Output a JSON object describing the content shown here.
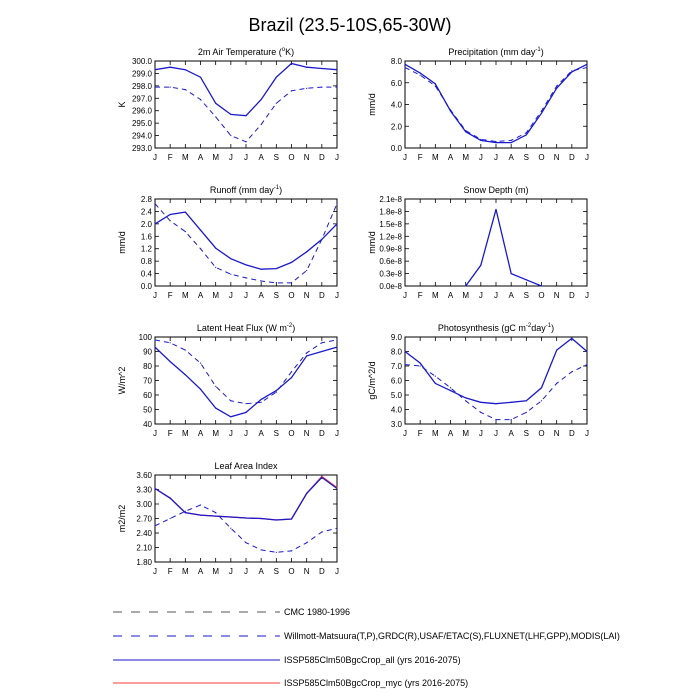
{
  "page_title": "Brazil (23.5-10S,65-30W)",
  "months": [
    "J",
    "F",
    "M",
    "A",
    "M",
    "J",
    "J",
    "A",
    "S",
    "O",
    "N",
    "D",
    "J"
  ],
  "colors": {
    "obs_cmc": "#555555",
    "obs_wm": "#1a1acc",
    "all": "#1a1acc",
    "myc": "#ff3b3b"
  },
  "legend": [
    {
      "label": "CMC 1980-1996",
      "style": "dashed",
      "color": "#555555"
    },
    {
      "label": "Willmott-Matsuura(T,P),GRDC(R),USAF/ETAC(S),FLUXNET(LHF,GPP),MODIS(LAI)",
      "style": "dashed",
      "color": "#1a1acc"
    },
    {
      "label": "ISSP585Clm50BgcCrop_all (yrs 2016-2075)",
      "style": "solid",
      "color": "#1a1acc"
    },
    {
      "label": "ISSP585Clm50BgcCrop_myc (yrs 2016-2075)",
      "style": "solid",
      "color": "#ff3b3b"
    }
  ],
  "chart_data": [
    {
      "id": "air-temp",
      "type": "line",
      "title": "2m Air Temperature (",
      "title_sup": "o",
      "title_tail": "K)",
      "ylabel": "K",
      "ylim": [
        293,
        300
      ],
      "yticks": [
        "293.0",
        "294.0",
        "295.0",
        "296.0",
        "297.0",
        "298.0",
        "299.0",
        "300.0"
      ],
      "x": [
        "J",
        "F",
        "M",
        "A",
        "M",
        "J",
        "J",
        "A",
        "S",
        "O",
        "N",
        "D",
        "J"
      ],
      "series": [
        {
          "style": "solid",
          "values": [
            299.3,
            299.5,
            299.3,
            298.7,
            296.6,
            295.7,
            295.6,
            296.9,
            298.7,
            299.8,
            299.5,
            299.4,
            299.3
          ]
        },
        {
          "style": "dashed",
          "values": [
            297.9,
            297.9,
            297.7,
            296.9,
            295.5,
            294.0,
            293.5,
            294.9,
            296.6,
            297.6,
            297.8,
            297.9,
            297.9
          ]
        }
      ]
    },
    {
      "id": "precip",
      "type": "line",
      "title": "Precipitation (mm day",
      "title_sup": "-1",
      "title_tail": ")",
      "ylabel": "mm/d",
      "ylim": [
        0,
        8
      ],
      "yticks": [
        "0.0",
        "2.0",
        "4.0",
        "6.0",
        "8.0"
      ],
      "x": [
        "J",
        "F",
        "M",
        "A",
        "M",
        "J",
        "J",
        "A",
        "S",
        "O",
        "N",
        "D",
        "J"
      ],
      "series": [
        {
          "style": "solid",
          "values": [
            7.7,
            6.9,
            5.9,
            3.4,
            1.5,
            0.7,
            0.5,
            0.5,
            1.2,
            3.2,
            5.5,
            7.0,
            7.7
          ]
        },
        {
          "style": "dashed",
          "values": [
            7.4,
            6.7,
            5.7,
            3.5,
            1.6,
            0.8,
            0.6,
            0.7,
            1.4,
            3.4,
            5.7,
            7.1,
            7.4
          ]
        }
      ]
    },
    {
      "id": "runoff",
      "type": "line",
      "title": "Runoff (mm day",
      "title_sup": "-1",
      "title_tail": ")",
      "ylabel": "mm/d",
      "ylim": [
        0,
        2.8
      ],
      "yticks": [
        "0.0",
        "0.4",
        "0.8",
        "1.2",
        "1.6",
        "2.0",
        "2.4",
        "2.8"
      ],
      "x": [
        "J",
        "F",
        "M",
        "A",
        "M",
        "J",
        "J",
        "A",
        "S",
        "O",
        "N",
        "D",
        "J"
      ],
      "series": [
        {
          "style": "solid",
          "values": [
            2.0,
            2.3,
            2.38,
            1.8,
            1.22,
            0.88,
            0.68,
            0.54,
            0.56,
            0.76,
            1.1,
            1.5,
            2.0
          ]
        },
        {
          "style": "dashed",
          "values": [
            2.65,
            2.1,
            1.75,
            1.2,
            0.6,
            0.38,
            0.26,
            0.16,
            0.1,
            0.1,
            0.5,
            1.5,
            2.65
          ]
        }
      ]
    },
    {
      "id": "snow-depth",
      "type": "line",
      "title": "Snow Depth (m)",
      "title_sup": "",
      "title_tail": "",
      "ylabel": "mm/d",
      "ylim": [
        0,
        2.1e-08
      ],
      "yticks": [
        "0.0e-8",
        "0.3e-8",
        "0.6e-8",
        "0.9e-8",
        "1.2e-8",
        "1.5e-8",
        "1.8e-8",
        "2.1e-8"
      ],
      "x": [
        "J",
        "F",
        "M",
        "A",
        "M",
        "J",
        "J",
        "A",
        "S",
        "O",
        "N",
        "D",
        "J"
      ],
      "series": [
        {
          "style": "solid",
          "values": [
            null,
            null,
            null,
            null,
            0.0,
            5e-09,
            1.85e-08,
            3e-09,
            1.5e-09,
            0.0,
            null,
            null,
            null
          ]
        }
      ]
    },
    {
      "id": "latent-heat",
      "type": "line",
      "title": "Latent Heat Flux (W m",
      "title_sup": "-2",
      "title_tail": ")",
      "ylabel": "W/m^2",
      "ylim": [
        40,
        100
      ],
      "yticks": [
        "40",
        "50",
        "60",
        "70",
        "80",
        "90",
        "100"
      ],
      "x": [
        "J",
        "F",
        "M",
        "A",
        "M",
        "J",
        "J",
        "A",
        "S",
        "O",
        "N",
        "D",
        "J"
      ],
      "series": [
        {
          "style": "solid",
          "values": [
            93,
            83,
            74,
            64,
            51,
            45,
            48,
            57,
            63,
            72,
            87,
            90,
            93
          ]
        },
        {
          "style": "dashed",
          "values": [
            98,
            96,
            91,
            82,
            66,
            56,
            54,
            55,
            62,
            76,
            89,
            96,
            98
          ]
        }
      ]
    },
    {
      "id": "photosynthesis",
      "type": "line",
      "title": "Photosynthesis (gC m",
      "title_sup": "-2",
      "title_tail": "day",
      "title_sup2": "-1",
      "title_tail2": ")",
      "ylabel": "gC/m^2/d",
      "ylim": [
        3,
        9
      ],
      "yticks": [
        "3.0",
        "4.0",
        "5.0",
        "6.0",
        "7.0",
        "8.0",
        "9.0"
      ],
      "x": [
        "J",
        "F",
        "M",
        "A",
        "M",
        "J",
        "J",
        "A",
        "S",
        "O",
        "N",
        "D",
        "J"
      ],
      "series": [
        {
          "style": "solid",
          "values": [
            8.0,
            7.2,
            5.8,
            5.3,
            4.8,
            4.5,
            4.4,
            4.5,
            4.6,
            5.5,
            8.1,
            8.9,
            8.0
          ]
        },
        {
          "style": "dashed",
          "values": [
            7.1,
            7.0,
            6.3,
            5.5,
            4.6,
            3.8,
            3.3,
            3.3,
            3.8,
            4.6,
            5.8,
            6.6,
            7.1
          ]
        }
      ]
    },
    {
      "id": "lai",
      "type": "line",
      "title": "Leaf Area Index",
      "title_sup": "",
      "title_tail": "",
      "ylabel": "m2/m2",
      "ylim": [
        1.8,
        3.6
      ],
      "yticks": [
        "1.80",
        "2.10",
        "2.40",
        "2.70",
        "3.00",
        "3.30",
        "3.60"
      ],
      "x": [
        "J",
        "F",
        "M",
        "A",
        "M",
        "J",
        "J",
        "A",
        "S",
        "O",
        "N",
        "D",
        "J"
      ],
      "series": [
        {
          "style": "solid",
          "values": [
            3.32,
            3.12,
            2.82,
            2.77,
            2.75,
            2.73,
            2.71,
            2.7,
            2.67,
            2.69,
            3.22,
            3.55,
            3.32
          ]
        },
        {
          "style": "dashed",
          "values": [
            2.55,
            2.7,
            2.85,
            2.98,
            2.82,
            2.5,
            2.2,
            2.05,
            2.0,
            2.03,
            2.2,
            2.42,
            2.5
          ]
        },
        {
          "style": "myc",
          "values": [
            3.32,
            3.12,
            2.82,
            2.77,
            2.75,
            2.73,
            2.71,
            2.7,
            2.67,
            2.69,
            3.22,
            3.57,
            3.34
          ]
        }
      ]
    }
  ]
}
